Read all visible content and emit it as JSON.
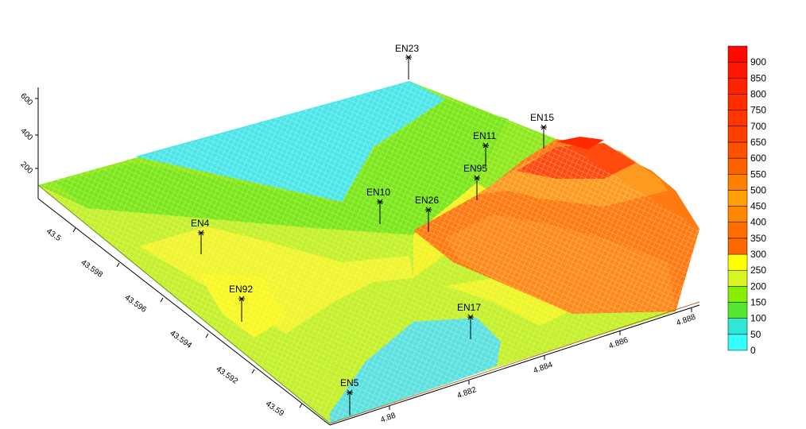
{
  "chart_data": {
    "type": "surface",
    "z_axis": {
      "ticks": [
        "200",
        "400",
        "600"
      ]
    },
    "y_axis": {
      "ticks": [
        "43.5",
        "43.598",
        "43.596",
        "43.594",
        "43.592",
        "43.59"
      ]
    },
    "x_axis": {
      "ticks": [
        "4.88",
        "4.882",
        "4.884",
        "4.886",
        "4.888"
      ]
    },
    "legend": {
      "labels": [
        "0",
        "50",
        "100",
        "150",
        "200",
        "250",
        "300",
        "350",
        "400",
        "450",
        "500",
        "550",
        "600",
        "650",
        "700",
        "750",
        "800",
        "850",
        "900"
      ],
      "colors": [
        "#33ffff",
        "#33e5d6",
        "#55e833",
        "#88ee00",
        "#d8f520",
        "#ffff00",
        "#ff6600",
        "#ff6e00",
        "#ff8800",
        "#ffa000",
        "#ff8000",
        "#ff6000",
        "#ff5000",
        "#ff4000",
        "#ff3600",
        "#ff2c00",
        "#ff2200",
        "#ff1500",
        "#ff0a00"
      ]
    },
    "stations": [
      {
        "name": "EN23"
      },
      {
        "name": "EN15"
      },
      {
        "name": "EN11"
      },
      {
        "name": "EN95"
      },
      {
        "name": "EN10"
      },
      {
        "name": "EN26"
      },
      {
        "name": "EN4"
      },
      {
        "name": "EN92"
      },
      {
        "name": "EN17"
      },
      {
        "name": "EN5"
      }
    ]
  }
}
